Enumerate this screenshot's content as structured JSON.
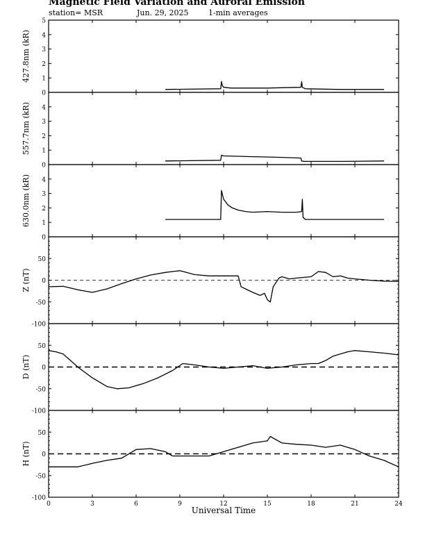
{
  "header": {
    "title": "Magnetic Field Variation and Auroral Emission",
    "station": "station= MSR",
    "date": "Jun. 29, 2025",
    "averaging": "1-min averages"
  },
  "chart_data": [
    {
      "type": "line",
      "ylabel": "427.8nm (kR)",
      "ylim": [
        0,
        5
      ],
      "yticks": [
        "0",
        "1",
        "2",
        "3",
        "4",
        "5"
      ],
      "series": [
        {
          "x": [
            8.0,
            11.8,
            11.85,
            11.9,
            12.0,
            12.5,
            15.0,
            17.3,
            17.35,
            17.4,
            17.6,
            20.0,
            23.0
          ],
          "values": [
            0.2,
            0.25,
            0.75,
            0.5,
            0.35,
            0.3,
            0.3,
            0.35,
            0.75,
            0.35,
            0.25,
            0.2,
            0.2
          ]
        }
      ]
    },
    {
      "type": "line",
      "ylabel": "557.7nm (kR)",
      "ylim": [
        0,
        5
      ],
      "yticks": [
        "0",
        "1",
        "2",
        "3",
        "4"
      ],
      "series": [
        {
          "x": [
            8.0,
            11.8,
            11.85,
            12.0,
            14.0,
            16.0,
            17.3,
            17.35,
            17.5,
            20.0,
            23.0
          ],
          "values": [
            0.25,
            0.3,
            0.65,
            0.6,
            0.55,
            0.5,
            0.45,
            0.25,
            0.22,
            0.22,
            0.25
          ]
        }
      ]
    },
    {
      "type": "line",
      "ylabel": "630.0nm (kR)",
      "ylim": [
        0,
        5
      ],
      "yticks": [
        "0",
        "1",
        "2",
        "3",
        "4"
      ],
      "series": [
        {
          "x": [
            8.0,
            11.8,
            11.85,
            12.0,
            12.3,
            12.6,
            13.0,
            13.5,
            14.0,
            15.0,
            16.0,
            17.0,
            17.35,
            17.4,
            17.45,
            17.6,
            20.0,
            23.0
          ],
          "values": [
            1.2,
            1.2,
            3.2,
            2.6,
            2.2,
            2.0,
            1.85,
            1.75,
            1.7,
            1.75,
            1.7,
            1.7,
            1.75,
            2.6,
            1.35,
            1.2,
            1.2,
            1.2
          ]
        }
      ]
    },
    {
      "type": "line",
      "ylabel": "Z (nT)",
      "ylim": [
        -100,
        100
      ],
      "yticks": [
        "-100",
        "-50",
        "0",
        "50"
      ],
      "reference_line": 0,
      "series": [
        {
          "x": [
            0,
            1,
            2,
            3,
            4,
            5,
            6,
            7,
            8,
            9,
            10,
            11,
            12,
            13,
            13.2,
            13.5,
            14,
            14.5,
            14.8,
            15,
            15.2,
            15.4,
            15.6,
            15.8,
            16,
            16.5,
            17,
            18,
            18.5,
            19,
            19.5,
            20,
            20.5,
            21,
            22,
            23,
            24
          ],
          "values": [
            -15,
            -14,
            -22,
            -28,
            -20,
            -8,
            3,
            12,
            18,
            22,
            13,
            10,
            10,
            10,
            -15,
            -20,
            -28,
            -35,
            -30,
            -45,
            -50,
            -15,
            -5,
            5,
            8,
            3,
            5,
            8,
            20,
            18,
            8,
            10,
            5,
            3,
            0,
            -2,
            -3
          ]
        }
      ]
    },
    {
      "type": "line",
      "ylabel": "D (nT)",
      "ylim": [
        -100,
        100
      ],
      "yticks": [
        "-100",
        "-50",
        "0",
        "50"
      ],
      "reference_line": 0,
      "series": [
        {
          "x": [
            0,
            0.5,
            1,
            1.5,
            2,
            3,
            4,
            4.7,
            5.5,
            6.5,
            7.5,
            8.5,
            9.2,
            10,
            11,
            12,
            13,
            14,
            15,
            16,
            17,
            18,
            18.5,
            19,
            19.5,
            20,
            20.5,
            21,
            22,
            23,
            24
          ],
          "values": [
            38,
            35,
            30,
            15,
            0,
            -25,
            -45,
            -50,
            -48,
            -38,
            -25,
            -8,
            8,
            5,
            0,
            -3,
            0,
            3,
            -3,
            0,
            5,
            8,
            8,
            15,
            25,
            30,
            35,
            38,
            35,
            32,
            28
          ]
        }
      ]
    },
    {
      "type": "line",
      "ylabel": "H (nT)",
      "ylim": [
        -100,
        100
      ],
      "yticks": [
        "-100",
        "-50",
        "0",
        "50"
      ],
      "reference_line": 0,
      "series": [
        {
          "x": [
            0,
            1,
            2,
            3,
            4,
            5,
            6,
            7,
            8,
            8.5,
            9,
            10,
            11,
            12,
            13,
            14,
            15,
            15.2,
            16,
            17,
            18,
            19,
            20,
            21,
            22,
            23,
            24
          ],
          "values": [
            -30,
            -30,
            -30,
            -22,
            -15,
            -10,
            10,
            12,
            5,
            -5,
            -5,
            -5,
            -5,
            5,
            15,
            25,
            30,
            40,
            25,
            22,
            20,
            15,
            20,
            10,
            -5,
            -15,
            -30
          ]
        }
      ]
    }
  ],
  "xaxis": {
    "label": "Universal Time",
    "xlim": [
      0,
      24
    ],
    "ticks": [
      "0",
      "3",
      "6",
      "9",
      "12",
      "15",
      "18",
      "21",
      "24"
    ]
  }
}
